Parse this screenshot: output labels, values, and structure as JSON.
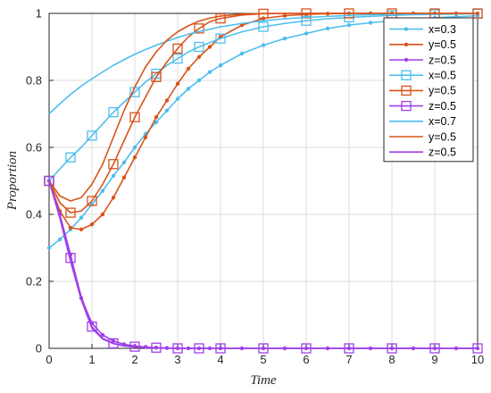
{
  "chart_data": {
    "type": "line",
    "title": "",
    "xlabel": "Time",
    "ylabel": "Proportion",
    "xlim": [
      0,
      10
    ],
    "ylim": [
      0,
      1
    ],
    "xticks": [
      "0",
      "1",
      "2",
      "3",
      "4",
      "5",
      "6",
      "7",
      "8",
      "9",
      "10"
    ],
    "yticks": [
      "0",
      "0.2",
      "0.4",
      "0.6",
      "0.8",
      "1"
    ],
    "grid": true,
    "legend_position": "top-right",
    "series": [
      {
        "name": "x=0.3",
        "color": "#4DBEEE",
        "marker": "dot",
        "x": [
          0,
          0.25,
          0.5,
          0.75,
          1,
          1.25,
          1.5,
          1.75,
          2,
          2.25,
          2.5,
          2.75,
          3,
          3.25,
          3.5,
          3.75,
          4,
          4.5,
          5,
          5.5,
          6,
          6.5,
          7,
          7.5,
          8,
          8.5,
          9,
          9.5,
          10
        ],
        "values": [
          0.3,
          0.325,
          0.355,
          0.39,
          0.43,
          0.47,
          0.515,
          0.555,
          0.6,
          0.64,
          0.675,
          0.71,
          0.745,
          0.775,
          0.8,
          0.825,
          0.845,
          0.88,
          0.905,
          0.925,
          0.94,
          0.955,
          0.965,
          0.972,
          0.978,
          0.983,
          0.987,
          0.99,
          0.993
        ]
      },
      {
        "name": "y=0.5",
        "color": "#D95319",
        "marker": "dot",
        "x": [
          0,
          0.25,
          0.5,
          0.75,
          1,
          1.25,
          1.5,
          1.75,
          2,
          2.25,
          2.5,
          2.75,
          3,
          3.25,
          3.5,
          3.75,
          4,
          4.5,
          5,
          5.5,
          6,
          6.5,
          7,
          7.5,
          8,
          8.5,
          9,
          9.5,
          10
        ],
        "values": [
          0.5,
          0.41,
          0.36,
          0.355,
          0.37,
          0.4,
          0.45,
          0.51,
          0.57,
          0.63,
          0.69,
          0.74,
          0.79,
          0.835,
          0.87,
          0.9,
          0.93,
          0.965,
          0.985,
          0.993,
          0.997,
          0.999,
          1,
          1,
          1,
          1,
          1,
          1,
          1
        ]
      },
      {
        "name": "z=0.5",
        "color": "#A040E8",
        "marker": "dot",
        "x": [
          0,
          0.25,
          0.5,
          0.75,
          1,
          1.25,
          1.5,
          1.75,
          2,
          2.25,
          2.5,
          2.75,
          3,
          3.25,
          3.5,
          3.75,
          4,
          4.5,
          5,
          5.5,
          6,
          6.5,
          7,
          7.5,
          8,
          8.5,
          9,
          9.5,
          10
        ],
        "values": [
          0.5,
          0.4,
          0.28,
          0.15,
          0.075,
          0.04,
          0.022,
          0.012,
          0.007,
          0.004,
          0.002,
          0.001,
          0,
          0,
          0,
          0,
          0,
          0,
          0,
          0,
          0,
          0,
          0,
          0,
          0,
          0,
          0,
          0,
          0
        ]
      },
      {
        "name": "x=0.5",
        "color": "#4DBEEE",
        "marker": "square",
        "x": [
          0,
          0.25,
          0.5,
          0.75,
          1,
          1.25,
          1.5,
          1.75,
          2,
          2.25,
          2.5,
          2.75,
          3,
          3.25,
          3.5,
          3.75,
          4,
          4.5,
          5,
          5.5,
          6,
          6.5,
          7,
          7.5,
          8,
          8.5,
          9,
          9.5,
          10
        ],
        "values": [
          0.5,
          0.535,
          0.57,
          0.6,
          0.635,
          0.67,
          0.705,
          0.735,
          0.765,
          0.795,
          0.82,
          0.845,
          0.865,
          0.885,
          0.9,
          0.913,
          0.925,
          0.945,
          0.96,
          0.97,
          0.978,
          0.984,
          0.988,
          0.991,
          0.994,
          0.996,
          0.997,
          0.998,
          0.999
        ]
      },
      {
        "name": "y=0.5",
        "color": "#D95319",
        "marker": "square",
        "x": [
          0,
          0.25,
          0.5,
          0.75,
          1,
          1.25,
          1.5,
          1.75,
          2,
          2.25,
          2.5,
          2.75,
          3,
          3.25,
          3.5,
          3.75,
          4,
          4.5,
          5,
          5.5,
          6,
          6.5,
          7,
          7.5,
          8,
          8.5,
          9,
          9.5,
          10
        ],
        "values": [
          0.5,
          0.435,
          0.405,
          0.41,
          0.44,
          0.49,
          0.55,
          0.62,
          0.69,
          0.75,
          0.81,
          0.855,
          0.895,
          0.93,
          0.955,
          0.975,
          0.985,
          0.995,
          0.999,
          1,
          1,
          1,
          1,
          1,
          1,
          1,
          1,
          1,
          1
        ]
      },
      {
        "name": "z=0.5",
        "color": "#A040E8",
        "marker": "square",
        "x": [
          0,
          0.25,
          0.5,
          0.75,
          1,
          1.25,
          1.5,
          1.75,
          2,
          2.25,
          2.5,
          2.75,
          3,
          3.25,
          3.5,
          3.75,
          4,
          4.5,
          5,
          5.5,
          6,
          6.5,
          7,
          7.5,
          8,
          8.5,
          9,
          9.5,
          10
        ],
        "values": [
          0.5,
          0.395,
          0.27,
          0.155,
          0.065,
          0.03,
          0.015,
          0.008,
          0.005,
          0.003,
          0.002,
          0.001,
          0,
          0,
          0,
          0,
          0,
          0,
          0,
          0,
          0,
          0,
          0,
          0,
          0,
          0,
          0,
          0,
          0
        ]
      },
      {
        "name": "x=0.7",
        "color": "#4DBEEE",
        "marker": "none",
        "x": [
          0,
          0.25,
          0.5,
          0.75,
          1,
          1.25,
          1.5,
          1.75,
          2,
          2.25,
          2.5,
          2.75,
          3,
          3.25,
          3.5,
          3.75,
          4,
          4.5,
          5,
          5.5,
          6,
          6.5,
          7,
          7.5,
          8,
          8.5,
          9,
          9.5,
          10
        ],
        "values": [
          0.7,
          0.73,
          0.758,
          0.783,
          0.805,
          0.825,
          0.845,
          0.862,
          0.878,
          0.892,
          0.905,
          0.917,
          0.928,
          0.938,
          0.946,
          0.953,
          0.96,
          0.97,
          0.978,
          0.984,
          0.988,
          0.991,
          0.994,
          0.996,
          0.997,
          0.998,
          0.999,
          0.999,
          1
        ]
      },
      {
        "name": "y=0.5",
        "color": "#D95319",
        "marker": "none",
        "x": [
          0,
          0.25,
          0.5,
          0.75,
          1,
          1.25,
          1.5,
          1.75,
          2,
          2.25,
          2.5,
          2.75,
          3,
          3.25,
          3.5,
          3.75,
          4,
          4.5,
          5,
          5.5,
          6,
          6.5,
          7,
          7.5,
          8,
          8.5,
          9,
          9.5,
          10
        ],
        "values": [
          0.5,
          0.455,
          0.44,
          0.45,
          0.49,
          0.55,
          0.63,
          0.71,
          0.78,
          0.84,
          0.885,
          0.92,
          0.945,
          0.963,
          0.977,
          0.986,
          0.992,
          0.998,
          1,
          1,
          1,
          1,
          1,
          1,
          1,
          1,
          1,
          1,
          1
        ]
      },
      {
        "name": "z=0.5",
        "color": "#A040E8",
        "marker": "none",
        "x": [
          0,
          0.25,
          0.5,
          0.75,
          1,
          1.25,
          1.5,
          1.75,
          2,
          2.25,
          2.5,
          2.75,
          3,
          3.25,
          3.5,
          3.75,
          4,
          4.5,
          5,
          5.5,
          6,
          6.5,
          7,
          7.5,
          8,
          8.5,
          9,
          9.5,
          10
        ],
        "values": [
          0.5,
          0.39,
          0.26,
          0.145,
          0.06,
          0.028,
          0.014,
          0.007,
          0.004,
          0.002,
          0.001,
          0,
          0,
          0,
          0,
          0,
          0,
          0,
          0,
          0,
          0,
          0,
          0,
          0,
          0,
          0,
          0,
          0,
          0
        ]
      }
    ]
  }
}
